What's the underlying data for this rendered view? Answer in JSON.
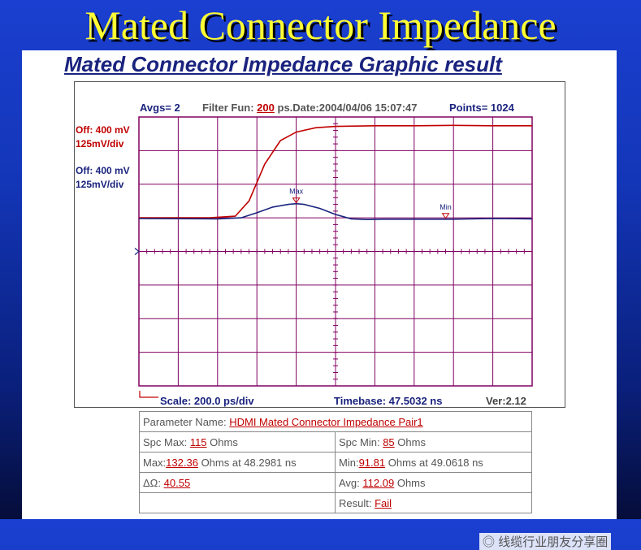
{
  "slide": {
    "title": "Mated Connector Impedance"
  },
  "panel": {
    "title": "Mated Connector Impedance Graphic result"
  },
  "header": {
    "avgs": "Avgs= 2",
    "filter_prefix": "Filter Fun:",
    "filter_value": "200",
    "filter_suffix": "ps.Date:2004/04/06 15:07:47",
    "points": "Points= 1024"
  },
  "channels": [
    {
      "off": "Off: 400 mV",
      "scale": "125mV/div",
      "color": "#c00000"
    },
    {
      "off": "Off: 400 mV",
      "scale": "125mV/div",
      "color": "#1a237e"
    }
  ],
  "footer": {
    "scale": "Scale: 200.0 ps/div",
    "timebase": "Timebase: 47.5032 ns",
    "version": "Ver:2.12"
  },
  "chart_data": {
    "type": "line",
    "grid": true,
    "grid_divisions": {
      "x": 10,
      "y": 8
    },
    "x_unit": "div",
    "y_unit": "div",
    "xlim": [
      0,
      10
    ],
    "ylim": [
      0,
      8
    ],
    "series": [
      {
        "color": "#c00000",
        "x": [
          0,
          1.8,
          2.45,
          2.8,
          3.2,
          3.6,
          4.0,
          4.5,
          5.0,
          6.0,
          7.0,
          8.0,
          9.0,
          10.0
        ],
        "y": [
          5.0,
          5.0,
          5.05,
          5.5,
          6.6,
          7.3,
          7.55,
          7.68,
          7.72,
          7.74,
          7.74,
          7.75,
          7.74,
          7.74
        ]
      },
      {
        "color": "#1a237e",
        "x": [
          0,
          2.0,
          2.6,
          3.0,
          3.4,
          3.8,
          4.0,
          4.2,
          4.6,
          5.0,
          5.4,
          5.8,
          6.2,
          7.0,
          8.0,
          9.0,
          10.0
        ],
        "y": [
          4.98,
          4.97,
          5.0,
          5.15,
          5.32,
          5.4,
          5.42,
          5.4,
          5.28,
          5.1,
          4.97,
          4.95,
          4.96,
          4.96,
          4.96,
          4.98,
          4.97
        ]
      }
    ],
    "markers": [
      {
        "label": "Max",
        "x": 4.0,
        "y": 5.42
      },
      {
        "label": "Min",
        "x": 7.8,
        "y": 4.96
      }
    ]
  },
  "params": {
    "name_label": "Parameter Name:",
    "name_value": "HDMI Mated Connector Impedance Pair1",
    "spc_max_label": "Spc Max:",
    "spc_max_value": "115",
    "spc_min_label": "Spc Min:",
    "spc_min_value": "85",
    "ohms": "Ohms",
    "max_label": "Max:",
    "max_value": "132.36",
    "max_at": "Ohms at 48.2981 ns",
    "min_label": "Min:",
    "min_value": "91.81",
    "min_at": "Ohms at 49.0618 ns",
    "delta_label": "ΔΩ:",
    "delta_value": "40.55",
    "avg_label": "Avg:",
    "avg_value": "112.09",
    "result_label": "Result:",
    "result_value": "Fail"
  },
  "watermark": "线缆行业朋友分享圈"
}
